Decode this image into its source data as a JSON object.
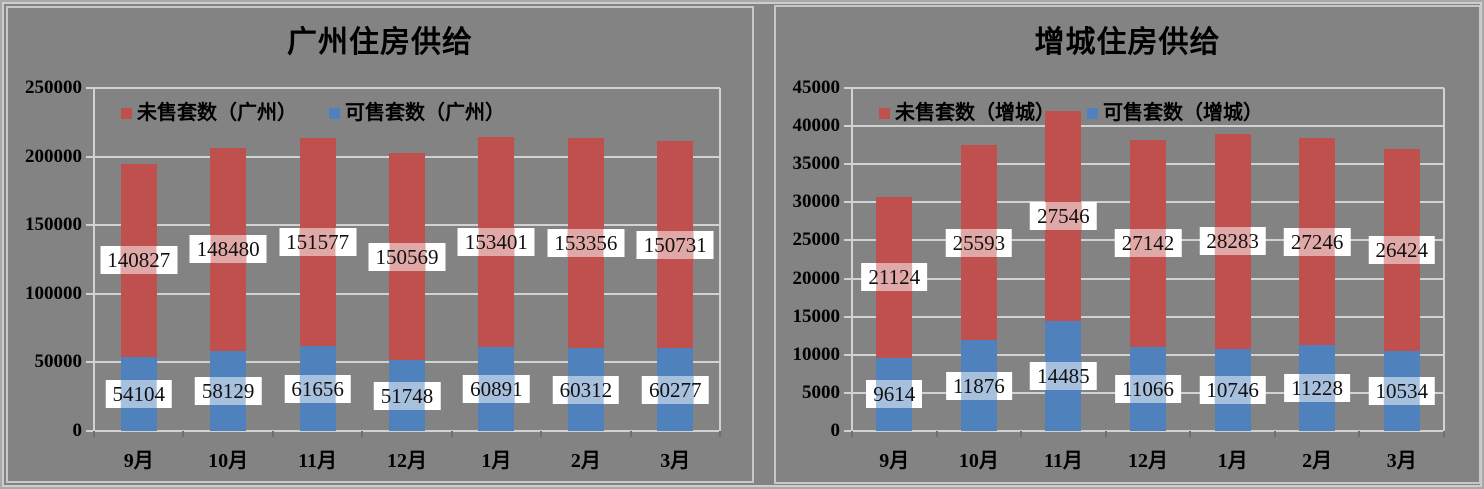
{
  "colors": {
    "background": "#838383",
    "bar_red": "#C0504D",
    "bar_blue": "#4F81BD",
    "gridline": "#D2D2D2",
    "xtick": "#6E6E6E",
    "label_box_bg": "#FFFFFF",
    "label_tint_over_red": "#E0A8A6",
    "label_tint_over_blue": "#A7C0DE",
    "panel_border": "#C8C8C8",
    "text": "#000000"
  },
  "chart_data": [
    {
      "type": "bar",
      "stacked": true,
      "title": "广州住房供给",
      "categories": [
        "9月",
        "10月",
        "11月",
        "12月",
        "1月",
        "2月",
        "3月"
      ],
      "series": [
        {
          "name": "可售套数（广州）",
          "role": "available",
          "color": "#4F81BD",
          "values": [
            54104,
            58129,
            61656,
            51748,
            60891,
            60312,
            60277
          ]
        },
        {
          "name": "未售套数（广州）",
          "role": "unsold",
          "color": "#C0504D",
          "values": [
            140827,
            148480,
            151577,
            150569,
            153401,
            153356,
            150731
          ]
        }
      ],
      "legend": [
        {
          "label": "未售套数（广州）",
          "color": "#C0504D"
        },
        {
          "label": "可售套数（广州）",
          "color": "#4F81BD"
        }
      ],
      "ylim": [
        0,
        250000
      ],
      "ytick_step": 50000,
      "ytick_labels": [
        "250000",
        "200000",
        "150000",
        "100000",
        "50000",
        "0"
      ],
      "grid": true,
      "legend_position": "inside-top-left",
      "data_labels": true
    },
    {
      "type": "bar",
      "stacked": true,
      "title": "增城住房供给",
      "categories": [
        "9月",
        "10月",
        "11月",
        "12月",
        "1月",
        "2月",
        "3月"
      ],
      "series": [
        {
          "name": "可售套数（增城）",
          "role": "available",
          "color": "#4F81BD",
          "values": [
            9614,
            11876,
            14485,
            11066,
            10746,
            11228,
            10534
          ]
        },
        {
          "name": "未售套数（增城）",
          "role": "unsold",
          "color": "#C0504D",
          "values": [
            21124,
            25593,
            27546,
            27142,
            28283,
            27246,
            26424
          ]
        }
      ],
      "legend": [
        {
          "label": "未售套数（增城）",
          "color": "#C0504D"
        },
        {
          "label": "可售套数（增城）",
          "color": "#4F81BD"
        }
      ],
      "ylim": [
        0,
        45000
      ],
      "ytick_step": 5000,
      "ytick_labels": [
        "45000",
        "40000",
        "35000",
        "30000",
        "25000",
        "20000",
        "15000",
        "10000",
        "5000",
        "0"
      ],
      "grid": true,
      "legend_position": "inside-top-left",
      "data_labels": true
    }
  ]
}
